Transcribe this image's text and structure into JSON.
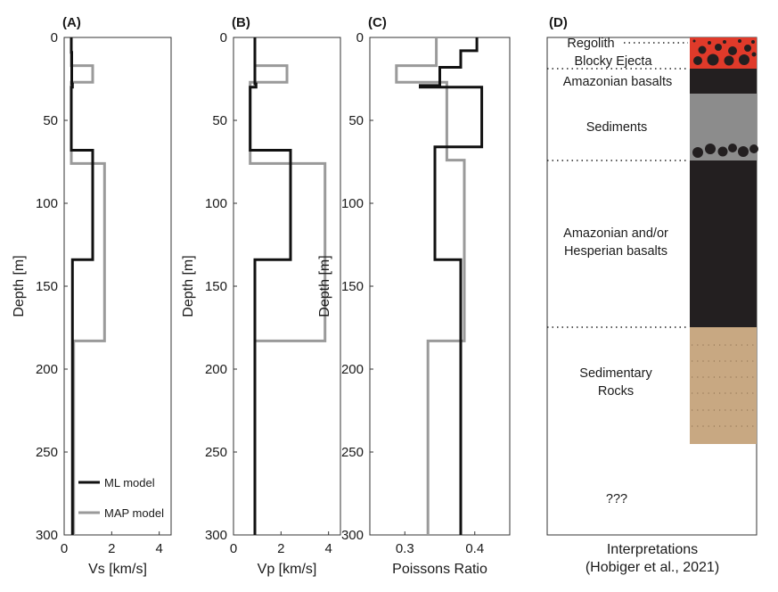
{
  "chart_data": [
    {
      "type": "line",
      "panel_label": "(A)",
      "xlabel": "Vs [km/s]",
      "ylabel": "Depth [m]",
      "xlim": [
        0,
        4.5
      ],
      "ylim": [
        300,
        0
      ],
      "xticks": [
        "0",
        "2",
        "4"
      ],
      "xtick_values": [
        0,
        2,
        4
      ],
      "yticks": [
        "0",
        "50",
        "100",
        "150",
        "200",
        "250",
        "300"
      ],
      "ytick_values": [
        0,
        50,
        100,
        150,
        200,
        250,
        300
      ],
      "legend": {
        "placement": "bottom-right"
      },
      "series": [
        {
          "name": "ML model",
          "color": "#111111",
          "points": [
            [
              0.3,
              0
            ],
            [
              0.3,
              9
            ],
            [
              0.32,
              9
            ],
            [
              0.32,
              28
            ],
            [
              0.35,
              28
            ],
            [
              0.35,
              30
            ],
            [
              0.3,
              30
            ],
            [
              0.3,
              68
            ],
            [
              1.2,
              68
            ],
            [
              1.2,
              134
            ],
            [
              0.35,
              134
            ],
            [
              0.35,
              300
            ]
          ]
        },
        {
          "name": "MAP model",
          "color": "#9a9a9a",
          "points": [
            [
              0.3,
              0
            ],
            [
              0.3,
              17
            ],
            [
              1.2,
              17
            ],
            [
              1.2,
              27
            ],
            [
              0.3,
              27
            ],
            [
              0.3,
              76
            ],
            [
              1.7,
              76
            ],
            [
              1.7,
              183
            ],
            [
              0.4,
              183
            ],
            [
              0.4,
              300
            ]
          ]
        }
      ]
    },
    {
      "type": "line",
      "panel_label": "(B)",
      "xlabel": "Vp [km/s]",
      "ylabel": "Depth [m]",
      "xlim": [
        0,
        4.5
      ],
      "ylim": [
        300,
        0
      ],
      "xticks": [
        "0",
        "2",
        "4"
      ],
      "xtick_values": [
        0,
        2,
        4
      ],
      "yticks": [
        "0",
        "50",
        "100",
        "150",
        "200",
        "250",
        "300"
      ],
      "ytick_values": [
        0,
        50,
        100,
        150,
        200,
        250,
        300
      ],
      "series": [
        {
          "name": "ML model",
          "color": "#111111",
          "points": [
            [
              0.9,
              0
            ],
            [
              0.9,
              28
            ],
            [
              0.95,
              28
            ],
            [
              0.95,
              30
            ],
            [
              0.7,
              30
            ],
            [
              0.7,
              68
            ],
            [
              2.4,
              68
            ],
            [
              2.4,
              134
            ],
            [
              0.9,
              134
            ],
            [
              0.9,
              300
            ]
          ]
        },
        {
          "name": "MAP model",
          "color": "#9a9a9a",
          "points": [
            [
              0.9,
              0
            ],
            [
              0.9,
              17
            ],
            [
              2.25,
              17
            ],
            [
              2.25,
              27
            ],
            [
              0.7,
              27
            ],
            [
              0.7,
              76
            ],
            [
              3.85,
              76
            ],
            [
              3.85,
              183
            ],
            [
              0.9,
              183
            ],
            [
              0.9,
              300
            ]
          ]
        }
      ]
    },
    {
      "type": "line",
      "panel_label": "(C)",
      "xlabel": "Poissons Ratio",
      "ylabel": "Depth [m]",
      "xlim": [
        0.25,
        0.45
      ],
      "ylim": [
        300,
        0
      ],
      "xticks": [
        "0.3",
        "0.4"
      ],
      "xtick_values": [
        0.3,
        0.4
      ],
      "yticks": [
        "0",
        "50",
        "100",
        "150",
        "200",
        "250",
        "300"
      ],
      "ytick_values": [
        0,
        50,
        100,
        150,
        200,
        250,
        300
      ],
      "series": [
        {
          "name": "ML model",
          "color": "#111111",
          "points": [
            [
              0.403,
              0
            ],
            [
              0.403,
              8
            ],
            [
              0.38,
              8
            ],
            [
              0.38,
              18
            ],
            [
              0.35,
              18
            ],
            [
              0.35,
              29
            ],
            [
              0.322,
              29
            ],
            [
              0.322,
              30
            ],
            [
              0.41,
              30
            ],
            [
              0.41,
              66
            ],
            [
              0.343,
              66
            ],
            [
              0.343,
              134
            ],
            [
              0.38,
              134
            ],
            [
              0.38,
              300
            ]
          ]
        },
        {
          "name": "MAP model",
          "color": "#9a9a9a",
          "points": [
            [
              0.345,
              0
            ],
            [
              0.345,
              17
            ],
            [
              0.288,
              17
            ],
            [
              0.288,
              27
            ],
            [
              0.36,
              27
            ],
            [
              0.36,
              74
            ],
            [
              0.385,
              74
            ],
            [
              0.385,
              183
            ],
            [
              0.333,
              183
            ],
            [
              0.333,
              300
            ]
          ]
        }
      ]
    }
  ],
  "interpretation": {
    "panel_label": "(D)",
    "xlabel_line1": "Interpretations",
    "xlabel_line2": "(Hobiger et al., 2021)",
    "ylim": [
      300,
      0
    ],
    "layers": [
      {
        "label": "Regolith",
        "top": 0,
        "bottom": 1,
        "fill": "#e03a2a"
      },
      {
        "label": "Blocky Ejecta",
        "top": 1,
        "bottom": 18,
        "fill": "#e03a2a"
      },
      {
        "label": "Amazonian basalts",
        "top": 18,
        "bottom": 33,
        "fill": "#231f20"
      },
      {
        "label": "Sediments",
        "top": 33,
        "bottom": 75,
        "fill": "#8c8c8c"
      },
      {
        "label": "Amazonian and/or Hesperian basalts",
        "top": 75,
        "bottom": 175,
        "fill": "#231f20"
      },
      {
        "label": "Sedimentary Rocks",
        "top": 175,
        "bottom": 244,
        "fill": "#c8a882"
      }
    ],
    "labels": {
      "regolith": "Regolith",
      "blocky": "Blocky Ejecta",
      "amazonian": "Amazonian basalts",
      "sediments": "Sediments",
      "basalts_line1": "Amazonian and/or",
      "basalts_line2": "Hesperian basalts",
      "rocks_line1": "Sedimentary",
      "rocks_line2": "Rocks",
      "unknown": "???"
    },
    "boundaries": [
      1,
      18,
      75,
      175
    ]
  }
}
